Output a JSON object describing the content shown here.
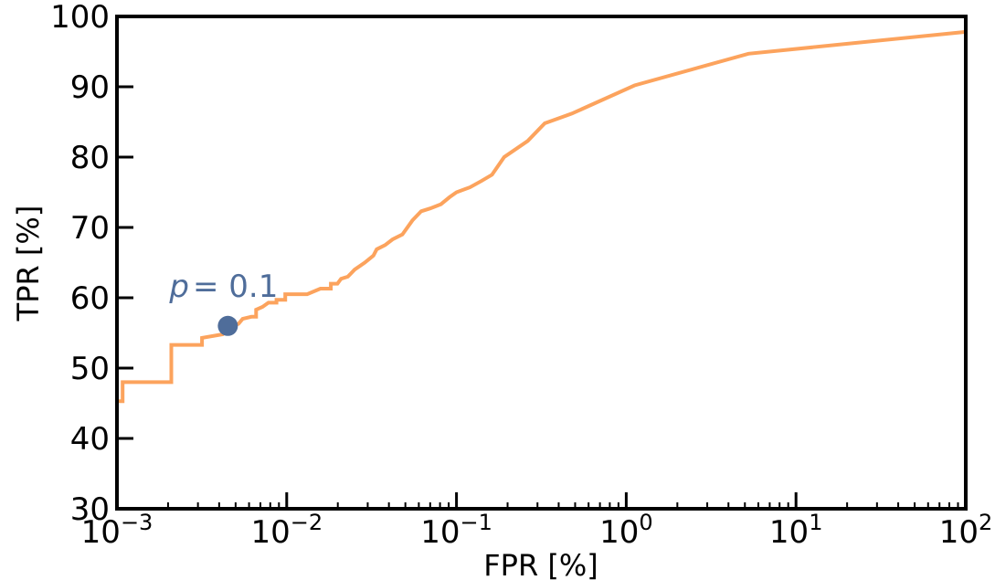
{
  "chart_data": {
    "type": "line",
    "xscale": "log",
    "xlabel": "FPR [%]",
    "ylabel": "TPR [%]",
    "xlim": [
      0.001,
      100
    ],
    "ylim": [
      30,
      100
    ],
    "grid": false,
    "x_ticks": [
      {
        "value": 0.001,
        "base": "10",
        "exp": "−3"
      },
      {
        "value": 0.01,
        "base": "10",
        "exp": "−2"
      },
      {
        "value": 0.1,
        "base": "10",
        "exp": "−1"
      },
      {
        "value": 1,
        "base": "10",
        "exp": "0"
      },
      {
        "value": 10,
        "base": "10",
        "exp": "1"
      },
      {
        "value": 100,
        "base": "10",
        "exp": "2"
      }
    ],
    "y_ticks": [
      30,
      40,
      50,
      60,
      70,
      80,
      90,
      100
    ],
    "series": [
      {
        "color": "#fca35d",
        "points": [
          [
            0.001,
            45.3
          ],
          [
            0.00108,
            45.3
          ],
          [
            0.00108,
            48.0
          ],
          [
            0.00209,
            48.0
          ],
          [
            0.00209,
            53.3
          ],
          [
            0.00317,
            53.3
          ],
          [
            0.00317,
            54.3
          ],
          [
            0.0042,
            54.8
          ],
          [
            0.0045,
            55.5
          ],
          [
            0.0048,
            56.0
          ],
          [
            0.0052,
            56.3
          ],
          [
            0.0055,
            57.0
          ],
          [
            0.0062,
            57.3
          ],
          [
            0.0066,
            57.3
          ],
          [
            0.0066,
            58.3
          ],
          [
            0.0072,
            58.7
          ],
          [
            0.0078,
            59.3
          ],
          [
            0.0087,
            59.3
          ],
          [
            0.0087,
            59.7
          ],
          [
            0.0098,
            59.7
          ],
          [
            0.0098,
            60.5
          ],
          [
            0.0132,
            60.5
          ],
          [
            0.0158,
            61.3
          ],
          [
            0.0182,
            61.3
          ],
          [
            0.0182,
            62.0
          ],
          [
            0.0199,
            62.0
          ],
          [
            0.0209,
            62.7
          ],
          [
            0.0229,
            63.0
          ],
          [
            0.0251,
            64.0
          ],
          [
            0.0288,
            65.0
          ],
          [
            0.0324,
            66.0
          ],
          [
            0.0339,
            66.9
          ],
          [
            0.038,
            67.5
          ],
          [
            0.042,
            68.3
          ],
          [
            0.048,
            69.0
          ],
          [
            0.055,
            71.0
          ],
          [
            0.062,
            72.3
          ],
          [
            0.07,
            72.7
          ],
          [
            0.081,
            73.3
          ],
          [
            0.091,
            74.3
          ],
          [
            0.1,
            75.0
          ],
          [
            0.12,
            75.7
          ],
          [
            0.14,
            76.6
          ],
          [
            0.162,
            77.5
          ],
          [
            0.191,
            80.0
          ],
          [
            0.263,
            82.3
          ],
          [
            0.331,
            84.8
          ],
          [
            0.479,
            86.2
          ],
          [
            1.12,
            90.2
          ],
          [
            5.25,
            94.7
          ],
          [
            100,
            97.8
          ]
        ]
      }
    ],
    "marker": {
      "x": 0.0045,
      "y": 56.0,
      "color": "#4f6d9a",
      "label_var": "p",
      "label_eq": "= 0.1"
    }
  }
}
